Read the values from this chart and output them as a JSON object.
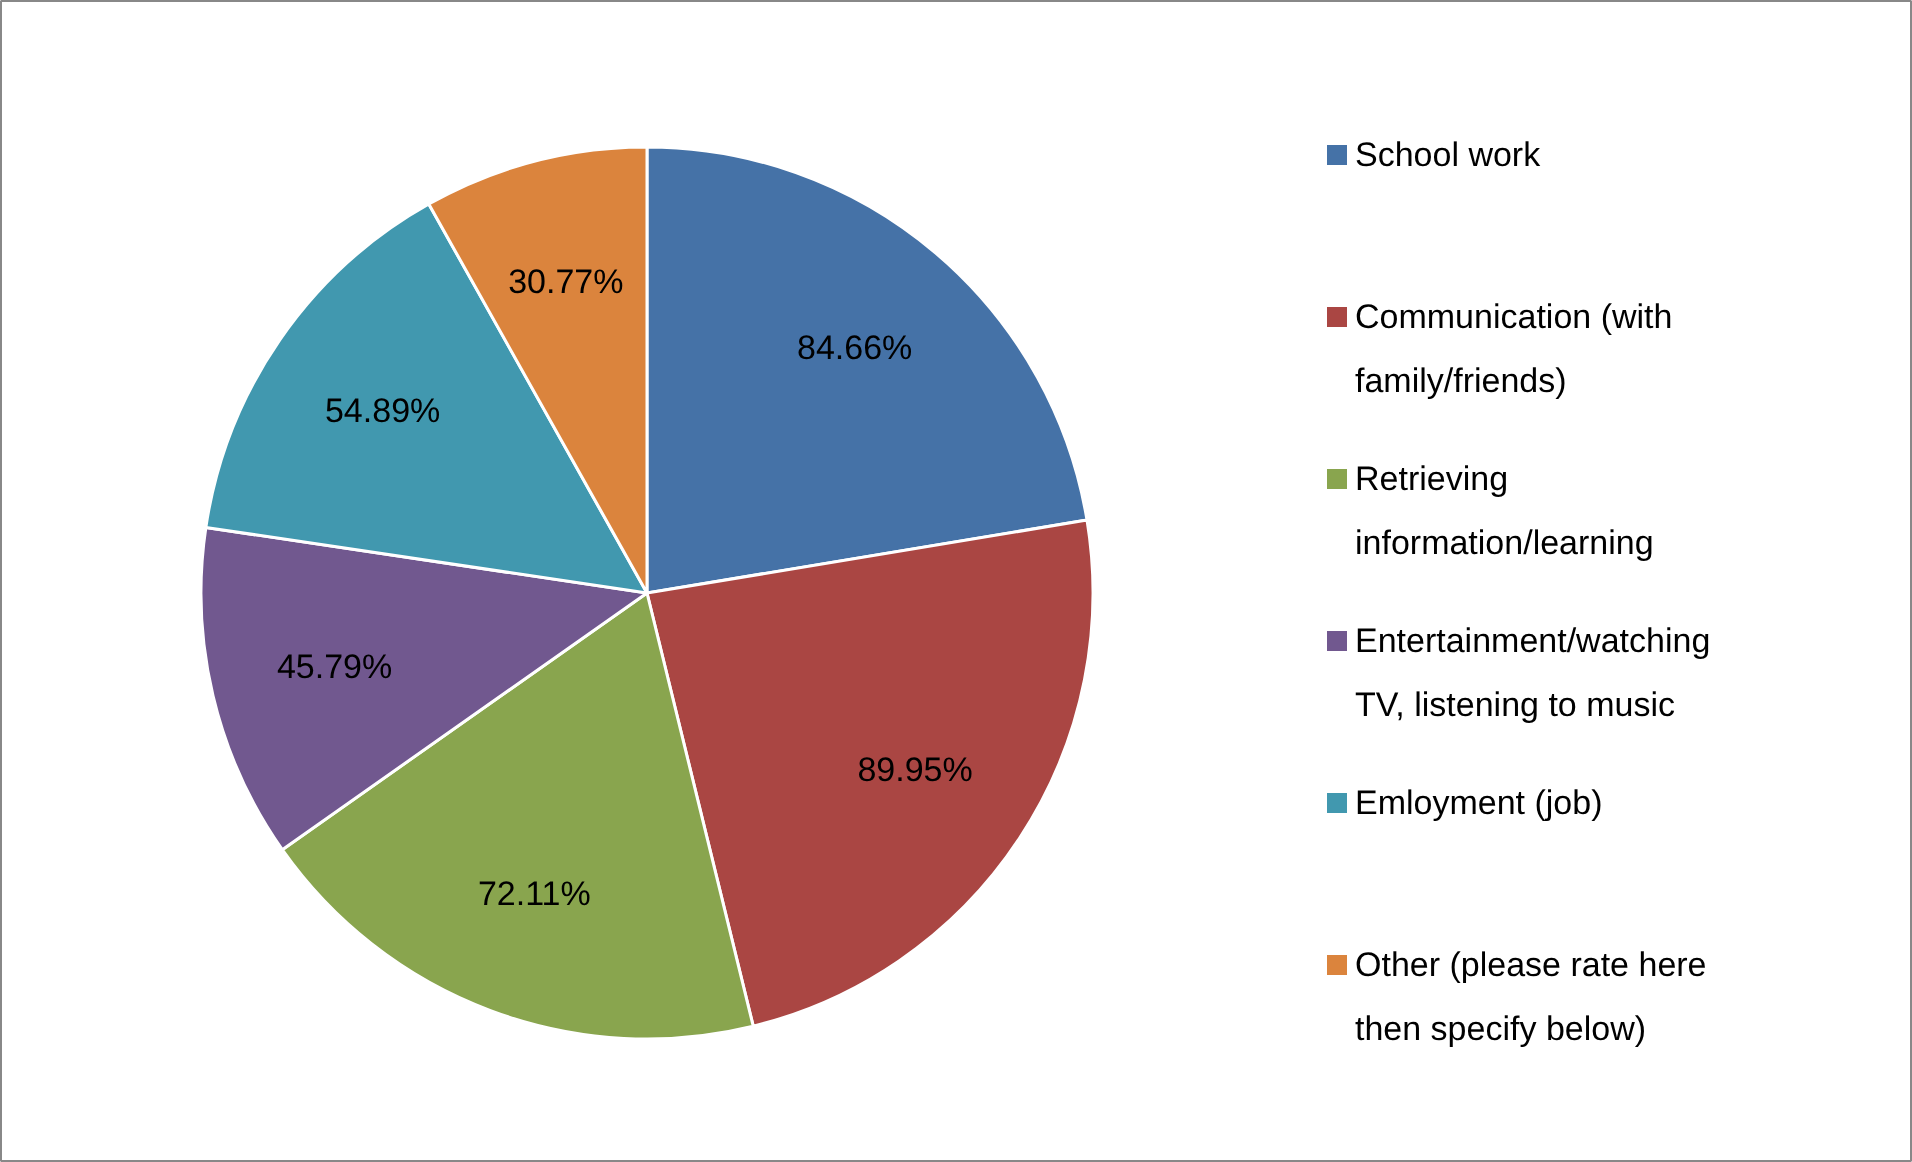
{
  "chart_data": {
    "type": "pie",
    "categories": [
      "School work",
      "Communication (with family/friends)",
      "Retrieving information/learning",
      "Entertainment/watching TV, listening to music",
      "Emloyment (job)",
      "Other (please rate here then specify below)"
    ],
    "values": [
      84.66,
      89.95,
      72.11,
      45.79,
      54.89,
      30.77
    ],
    "value_labels": [
      "84.66%",
      "89.95%",
      "72.11%",
      "45.79%",
      "54.89%",
      "30.77%"
    ],
    "colors": [
      "#4572a7",
      "#aa4643",
      "#89a54e",
      "#71588f",
      "#4198af",
      "#db843d"
    ],
    "legend": "right"
  }
}
